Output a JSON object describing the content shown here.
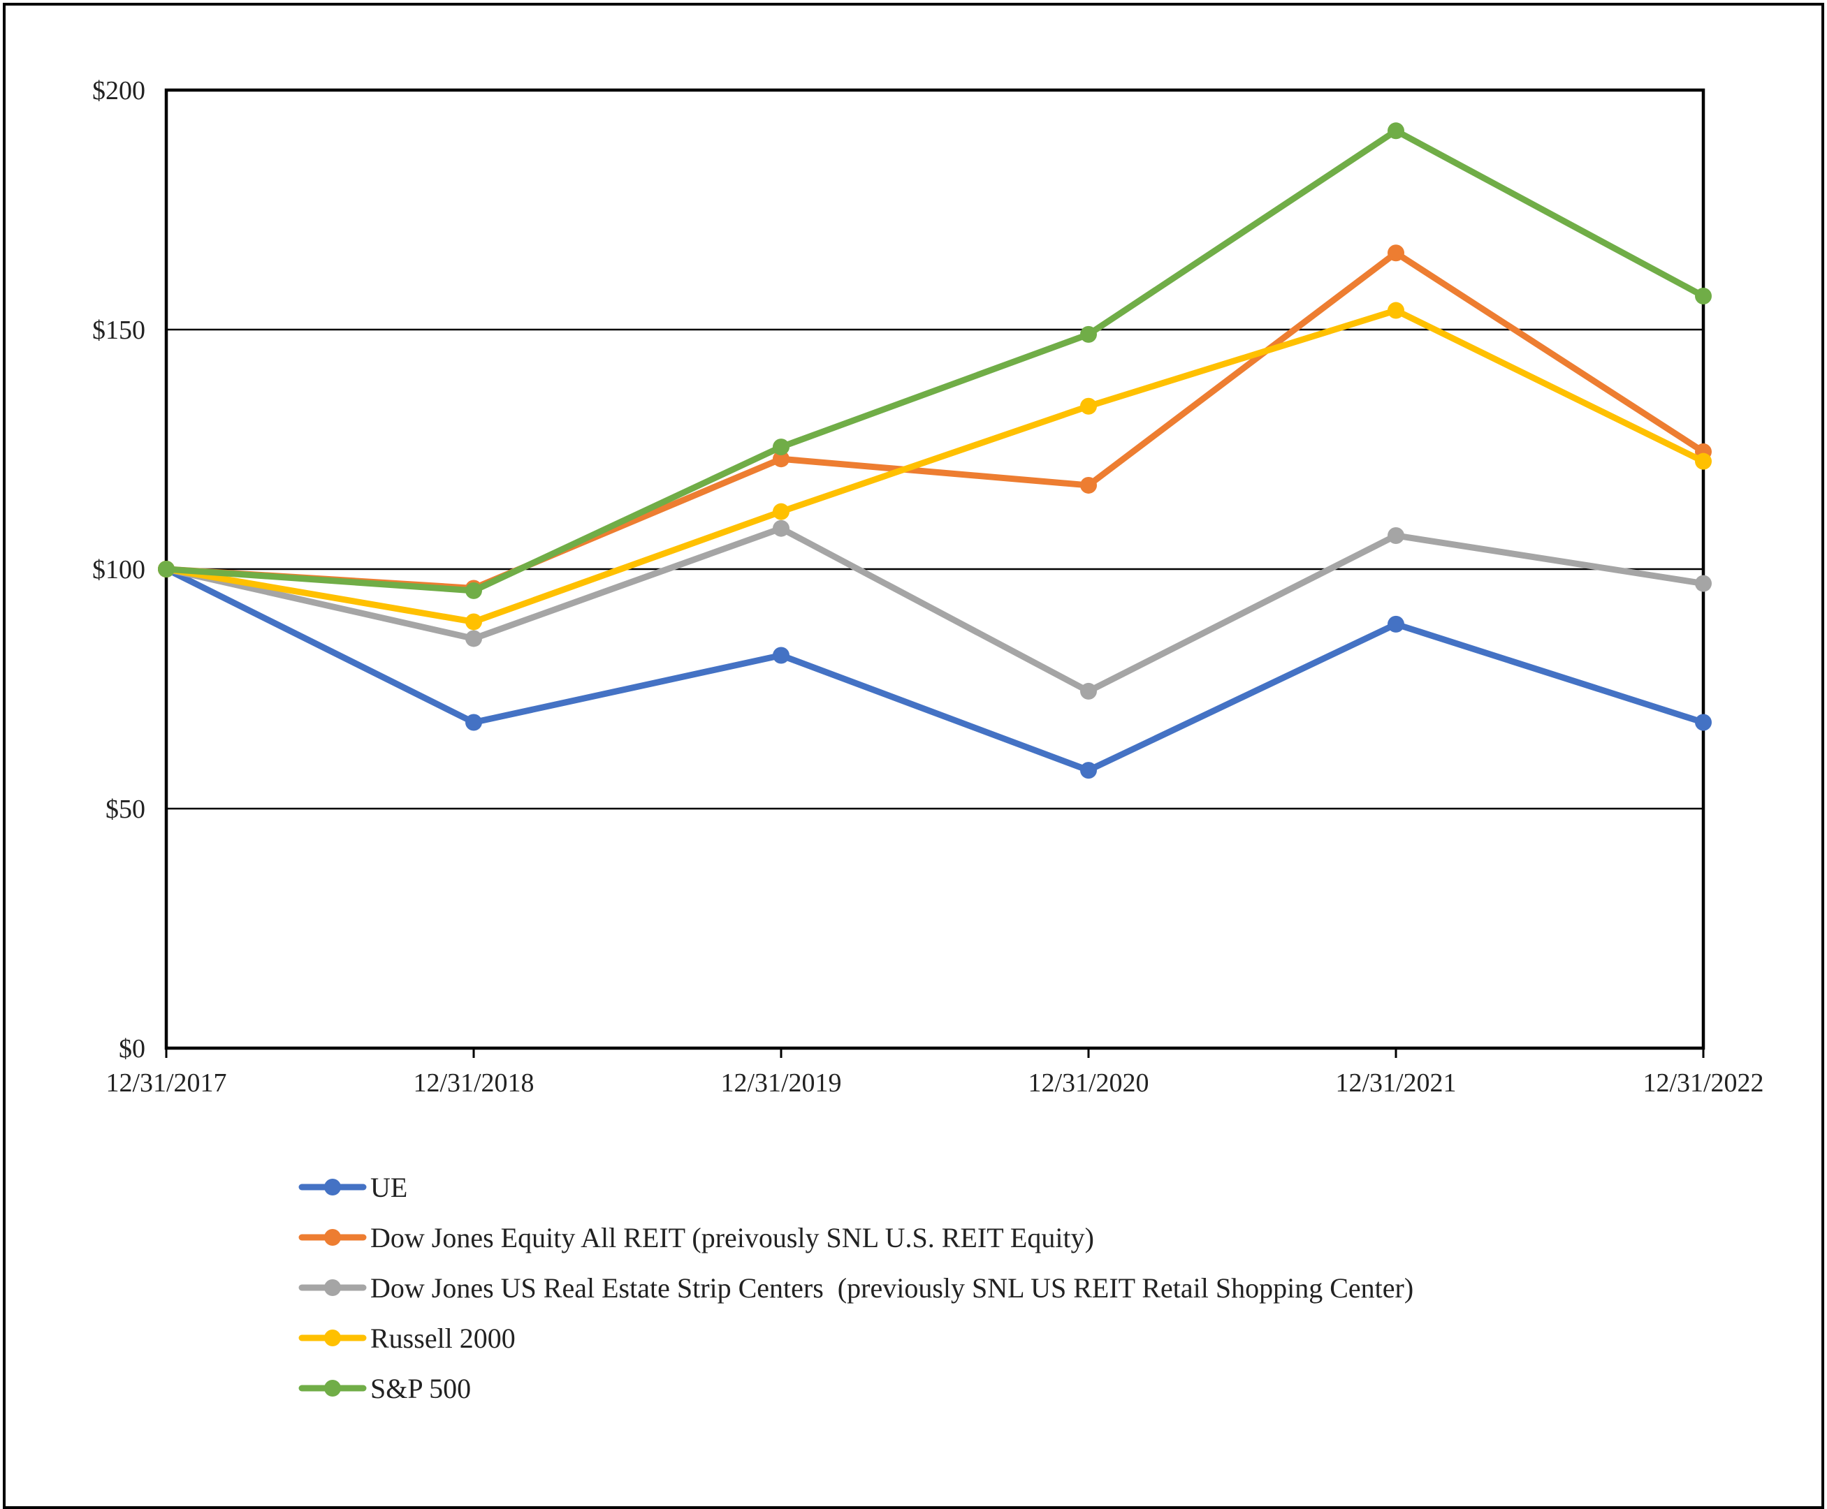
{
  "chart_data": {
    "type": "line",
    "title": "",
    "xlabel": "",
    "ylabel": "",
    "categories": [
      "12/31/2017",
      "12/31/2018",
      "12/31/2019",
      "12/31/2020",
      "12/31/2021",
      "12/31/2022"
    ],
    "y_ticks": [
      "$0",
      "$50",
      "$100",
      "$150",
      "$200"
    ],
    "y_tick_values": [
      0,
      50,
      100,
      150,
      200
    ],
    "ylim": [
      0,
      200
    ],
    "grid": true,
    "legend_position": "bottom",
    "series": [
      {
        "name": "UE",
        "color": "#4472C4",
        "values": [
          100,
          68,
          82,
          58,
          88.5,
          68
        ]
      },
      {
        "name": "Dow Jones Equity All REIT (preivously SNL U.S. REIT Equity)",
        "color": "#ED7D31",
        "values": [
          100,
          96,
          123,
          117.5,
          166,
          124.5
        ]
      },
      {
        "name": "Dow Jones US Real Estate Strip Centers  (previously SNL US REIT Retail Shopping Center)",
        "color": "#A5A5A5",
        "values": [
          100,
          85.5,
          108.5,
          74.5,
          107,
          97
        ]
      },
      {
        "name": "Russell 2000",
        "color": "#FFC000",
        "values": [
          100,
          89,
          112,
          134,
          154,
          122.5
        ]
      },
      {
        "name": "S&P 500",
        "color": "#70AD47",
        "values": [
          100,
          95.5,
          125.5,
          149,
          191.5,
          157
        ]
      }
    ]
  }
}
